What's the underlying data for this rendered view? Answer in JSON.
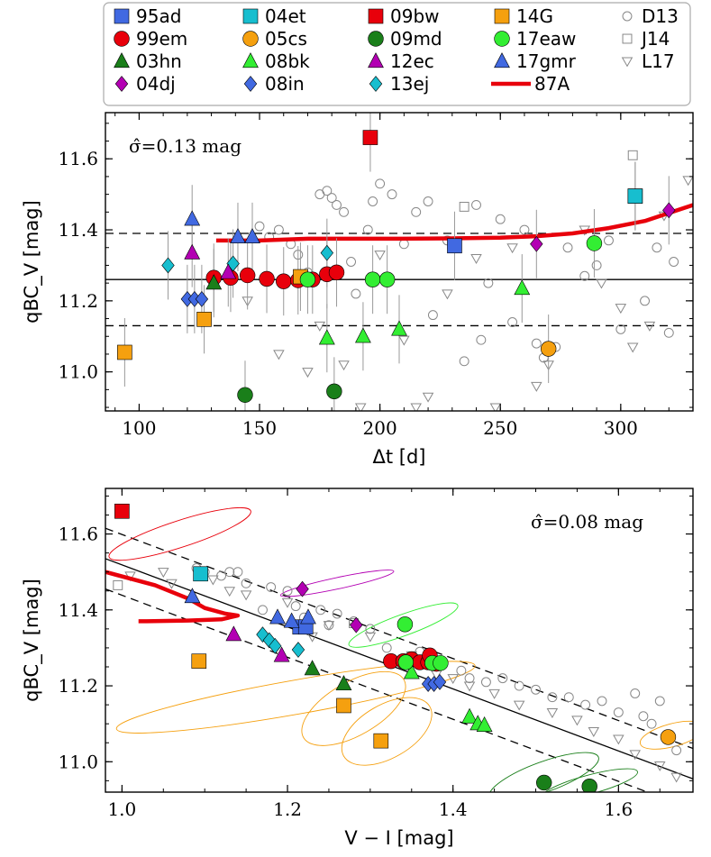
{
  "legend": [
    {
      "label": "95ad",
      "marker": "square",
      "color": "#4169e1"
    },
    {
      "label": "04et",
      "marker": "square",
      "color": "#17becf"
    },
    {
      "label": "09bw",
      "marker": "square",
      "color": "#e8000b"
    },
    {
      "label": "14G",
      "marker": "square",
      "color": "#f5a00f"
    },
    {
      "label": "D13",
      "marker": "open-circle",
      "color": "#888888"
    },
    {
      "label": "99em",
      "marker": "circle",
      "color": "#e8000b"
    },
    {
      "label": "05cs",
      "marker": "circle",
      "color": "#f5a00f"
    },
    {
      "label": "09md",
      "marker": "circle",
      "color": "#1a7f1a"
    },
    {
      "label": "17eaw",
      "marker": "circle",
      "color": "#33ee33"
    },
    {
      "label": "J14",
      "marker": "open-square",
      "color": "#888888"
    },
    {
      "label": "03hn",
      "marker": "triangle",
      "color": "#1a7f1a"
    },
    {
      "label": "08bk",
      "marker": "triangle",
      "color": "#33ee33"
    },
    {
      "label": "12ec",
      "marker": "triangle",
      "color": "#b300b3"
    },
    {
      "label": "17gmr",
      "marker": "triangle",
      "color": "#4169e1"
    },
    {
      "label": "L17",
      "marker": "open-tri-down",
      "color": "#888888"
    },
    {
      "label": "04dj",
      "marker": "diamond",
      "color": "#b300b3"
    },
    {
      "label": "08in",
      "marker": "diamond",
      "color": "#4169e1"
    },
    {
      "label": "13ej",
      "marker": "diamond",
      "color": "#17becf"
    },
    {
      "label": "87A",
      "marker": "line",
      "color": "#e8000b"
    }
  ],
  "chart_data": [
    {
      "type": "scatter",
      "xlabel": "Δt [d]",
      "ylabel": "qBC_V [mag]",
      "xlim": [
        86,
        330
      ],
      "ylim": [
        10.89,
        11.73
      ],
      "xticks": [
        100,
        150,
        200,
        250,
        300
      ],
      "yticks": [
        11.0,
        11.2,
        11.4,
        11.6
      ],
      "annotation": "σ̂=0.13 mag",
      "mean_line": 11.26,
      "band_lines": [
        11.13,
        11.39
      ],
      "curve_87A": {
        "x": [
          132,
          150,
          170,
          190,
          210,
          230,
          250,
          265,
          280,
          295,
          310,
          330
        ],
        "y": [
          11.37,
          11.37,
          11.375,
          11.375,
          11.375,
          11.376,
          11.378,
          11.382,
          11.39,
          11.405,
          11.425,
          11.47
        ]
      },
      "series": [
        {
          "name": "95ad",
          "x": [
            231,
            306
          ],
          "y": [
            11.355,
            11.495
          ]
        },
        {
          "name": "99em",
          "x": [
            131,
            138,
            145,
            153,
            160,
            166,
            172,
            178,
            182
          ],
          "y": [
            11.265,
            11.265,
            11.272,
            11.262,
            11.255,
            11.258,
            11.26,
            11.275,
            11.28
          ]
        },
        {
          "name": "03hn",
          "x": [
            131
          ],
          "y": [
            11.25
          ]
        },
        {
          "name": "04dj",
          "x": [
            265,
            320
          ],
          "y": [
            11.36,
            11.455
          ]
        },
        {
          "name": "04et",
          "x": [
            306
          ],
          "y": [
            11.495
          ]
        },
        {
          "name": "05cs",
          "x": [
            270
          ],
          "y": [
            11.065
          ]
        },
        {
          "name": "08bk",
          "x": [
            178,
            193,
            208,
            259
          ],
          "y": [
            11.095,
            11.1,
            11.12,
            11.235
          ]
        },
        {
          "name": "08in",
          "x": [
            120,
            123,
            126
          ],
          "y": [
            11.205,
            11.205,
            11.205
          ]
        },
        {
          "name": "13ej",
          "x": [
            112,
            139,
            178
          ],
          "y": [
            11.3,
            11.305,
            11.335
          ]
        },
        {
          "name": "09bw",
          "x": [
            196
          ],
          "y": [
            11.66
          ]
        },
        {
          "name": "09md",
          "x": [
            144,
            181
          ],
          "y": [
            10.935,
            10.945
          ]
        },
        {
          "name": "12ec",
          "x": [
            122,
            137
          ],
          "y": [
            11.335,
            11.28
          ]
        },
        {
          "name": "14G",
          "x": [
            94,
            127,
            167
          ],
          "y": [
            11.055,
            11.148,
            11.268
          ]
        },
        {
          "name": "17eaw",
          "x": [
            170,
            197,
            203,
            289
          ],
          "y": [
            11.26,
            11.26,
            11.26,
            11.362
          ]
        },
        {
          "name": "17gmr",
          "x": [
            122,
            141,
            147
          ],
          "y": [
            11.43,
            11.38,
            11.38
          ]
        },
        {
          "name": "D13",
          "x": [
            150,
            154,
            158,
            163,
            166,
            170,
            175,
            178,
            180,
            182,
            185,
            188,
            190,
            195,
            197,
            200,
            205,
            210,
            215,
            220,
            222,
            228,
            235,
            240,
            242,
            245,
            250,
            255,
            260,
            265,
            268,
            273,
            278,
            285,
            290,
            295,
            300,
            305,
            310,
            315,
            320,
            322
          ],
          "y": [
            11.41,
            11.38,
            11.4,
            11.36,
            11.33,
            11.28,
            11.5,
            11.51,
            11.49,
            11.47,
            11.45,
            11.31,
            11.22,
            11.4,
            11.48,
            11.53,
            11.5,
            11.36,
            11.45,
            11.48,
            11.16,
            11.37,
            11.03,
            11.47,
            11.09,
            11.25,
            11.43,
            11.14,
            11.4,
            11.08,
            11.04,
            11.07,
            11.35,
            11.27,
            11.3,
            11.37,
            11.12,
            11.5,
            11.2,
            11.35,
            11.11,
            11.31
          ]
        },
        {
          "name": "J14",
          "x": [
            197,
            230,
            235,
            305
          ],
          "y": [
            11.265,
            11.36,
            11.465,
            11.61
          ]
        },
        {
          "name": "L17",
          "x": [
            145,
            158,
            170,
            175,
            185,
            192,
            200,
            210,
            215,
            220,
            228,
            240,
            248,
            255,
            265,
            270,
            285,
            292,
            300,
            305,
            312,
            318,
            328
          ],
          "y": [
            11.2,
            11.05,
            11.0,
            11.13,
            11.02,
            10.9,
            11.33,
            11.09,
            10.9,
            10.93,
            11.22,
            11.32,
            10.9,
            11.35,
            10.96,
            11.02,
            11.4,
            11.25,
            11.18,
            11.07,
            11.13,
            11.44,
            11.54
          ]
        }
      ]
    },
    {
      "type": "scatter",
      "xlabel": "V − I [mag]",
      "ylabel": "qBC_V [mag]",
      "xlim": [
        0.98,
        1.69
      ],
      "ylim": [
        10.92,
        11.72
      ],
      "xticks": [
        1.0,
        1.2,
        1.4,
        1.6
      ],
      "yticks": [
        11.0,
        11.2,
        11.4,
        11.6
      ],
      "annotation": "σ̂=0.08 mag",
      "fit_line": {
        "x": [
          0.98,
          1.69
        ],
        "y": [
          11.535,
          10.955
        ]
      },
      "band_offset": 0.08,
      "curve_87A": {
        "x": [
          0.98,
          1.04,
          1.08,
          1.1,
          1.125,
          1.14,
          1.12,
          1.08,
          1.03,
          1.02
        ],
        "y": [
          11.5,
          11.465,
          11.43,
          11.405,
          11.39,
          11.385,
          11.375,
          11.372,
          11.37,
          11.37
        ]
      },
      "series": [
        {
          "name": "95ad",
          "x": [
            1.215,
            1.222
          ],
          "y": [
            11.355,
            11.355
          ]
        },
        {
          "name": "99em",
          "x": [
            1.325,
            1.34,
            1.35,
            1.36,
            1.37,
            1.375,
            1.38,
            1.372
          ],
          "y": [
            11.265,
            11.265,
            11.27,
            11.262,
            11.262,
            11.26,
            11.258,
            11.28
          ]
        },
        {
          "name": "03hn",
          "x": [
            1.23,
            1.268
          ],
          "y": [
            11.245,
            11.205
          ]
        },
        {
          "name": "04dj",
          "x": [
            1.218,
            1.283
          ],
          "y": [
            11.455,
            11.36
          ]
        },
        {
          "name": "04et",
          "x": [
            1.095
          ],
          "y": [
            11.495
          ]
        },
        {
          "name": "05cs",
          "x": [
            1.66
          ],
          "y": [
            11.065
          ]
        },
        {
          "name": "08bk",
          "x": [
            1.42,
            1.43,
            1.438,
            1.35
          ],
          "y": [
            11.118,
            11.1,
            11.096,
            11.235
          ]
        },
        {
          "name": "08in",
          "x": [
            1.37,
            1.377,
            1.384
          ],
          "y": [
            11.205,
            11.205,
            11.21
          ]
        },
        {
          "name": "13ej",
          "x": [
            1.17,
            1.178,
            1.185,
            1.213
          ],
          "y": [
            11.335,
            11.32,
            11.305,
            11.295
          ]
        },
        {
          "name": "09bw",
          "x": [
            1.0
          ],
          "y": [
            11.66
          ]
        },
        {
          "name": "09md",
          "x": [
            1.51,
            1.565
          ],
          "y": [
            10.945,
            10.935
          ]
        },
        {
          "name": "12ec",
          "x": [
            1.135,
            1.193
          ],
          "y": [
            11.335,
            11.28
          ]
        },
        {
          "name": "14G",
          "x": [
            1.093,
            1.268,
            1.313
          ],
          "y": [
            11.265,
            11.148,
            11.055
          ]
        },
        {
          "name": "17eaw",
          "x": [
            1.342,
            1.343,
            1.375,
            1.385
          ],
          "y": [
            11.362,
            11.262,
            11.26,
            11.26
          ]
        },
        {
          "name": "17gmr",
          "x": [
            1.085,
            1.188,
            1.205,
            1.225
          ],
          "y": [
            11.435,
            11.38,
            11.37,
            11.38
          ]
        },
        {
          "name": "D13",
          "x": [
            1.09,
            1.1,
            1.12,
            1.13,
            1.14,
            1.15,
            1.17,
            1.18,
            1.2,
            1.21,
            1.22,
            1.24,
            1.25,
            1.26,
            1.28,
            1.3,
            1.32,
            1.36,
            1.41,
            1.42,
            1.44,
            1.46,
            1.48,
            1.5,
            1.52,
            1.54,
            1.56,
            1.58,
            1.6,
            1.62,
            1.63,
            1.64,
            1.65,
            1.67
          ],
          "y": [
            11.51,
            11.5,
            11.49,
            11.5,
            11.5,
            11.47,
            11.4,
            11.46,
            11.45,
            11.41,
            11.38,
            11.4,
            11.36,
            11.39,
            11.37,
            11.35,
            11.3,
            11.29,
            11.24,
            11.22,
            11.21,
            11.22,
            11.2,
            11.19,
            11.17,
            11.17,
            11.15,
            11.16,
            11.13,
            11.18,
            11.12,
            11.1,
            11.16,
            11.03
          ]
        },
        {
          "name": "J14",
          "x": [
            0.995,
            1.095,
            1.28,
            1.34
          ],
          "y": [
            11.465,
            11.495,
            11.365,
            11.265
          ]
        },
        {
          "name": "L17",
          "x": [
            1.01,
            1.05,
            1.06,
            1.11,
            1.13,
            1.15,
            1.2,
            1.23,
            1.25,
            1.3,
            1.35,
            1.38,
            1.4,
            1.42,
            1.45,
            1.48,
            1.52,
            1.55,
            1.57,
            1.6,
            1.62,
            1.65,
            1.67
          ],
          "y": [
            11.49,
            11.5,
            11.47,
            11.48,
            11.45,
            11.44,
            11.42,
            11.33,
            11.36,
            11.33,
            11.28,
            11.23,
            11.22,
            11.2,
            11.18,
            11.15,
            11.13,
            11.11,
            11.08,
            11.06,
            11.02,
            10.99,
            10.96
          ]
        }
      ]
    }
  ]
}
